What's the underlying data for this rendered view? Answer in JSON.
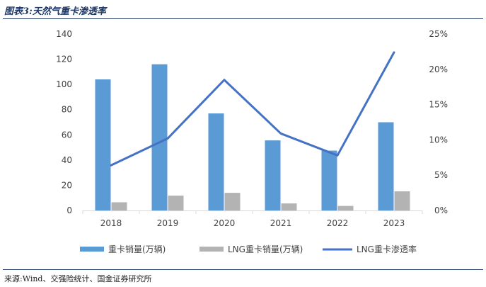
{
  "header": {
    "title": "图表3:天然气重卡渗透率"
  },
  "footer": {
    "source": "来源:Wind、交强险统计、国金证券研究所"
  },
  "chart_data": {
    "type": "bar",
    "categories": [
      "2018",
      "2019",
      "2020",
      "2021",
      "2022",
      "2023"
    ],
    "series": [
      {
        "name": "重卡销量(万辆)",
        "type": "bar",
        "axis": "left",
        "color": "#5b9bd5",
        "values": [
          104,
          116,
          77,
          55.6,
          47.5,
          70
        ]
      },
      {
        "name": "LNG重卡销量(万辆)",
        "type": "bar",
        "axis": "left",
        "color": "#b3b3b3",
        "values": [
          6.5,
          11.8,
          14,
          5.6,
          3.6,
          15.2
        ]
      },
      {
        "name": "LNG重卡渗透率",
        "type": "line",
        "axis": "right",
        "color": "#4472c4",
        "values": [
          0.064,
          0.102,
          0.185,
          0.109,
          0.078,
          0.224
        ]
      }
    ],
    "y_left": {
      "min": 0,
      "max": 140,
      "ticks": [
        0,
        20,
        40,
        60,
        80,
        100,
        120,
        140
      ],
      "tick_labels": [
        "0",
        "20",
        "40",
        "60",
        "80",
        "100",
        "120",
        "140"
      ]
    },
    "y_right": {
      "min": 0,
      "max": 0.25,
      "ticks": [
        0,
        0.05,
        0.1,
        0.15,
        0.2,
        0.25
      ],
      "tick_labels": [
        "0%",
        "5%",
        "10%",
        "15%",
        "20%",
        "25%"
      ]
    },
    "grid": false,
    "legend_position": "bottom"
  }
}
